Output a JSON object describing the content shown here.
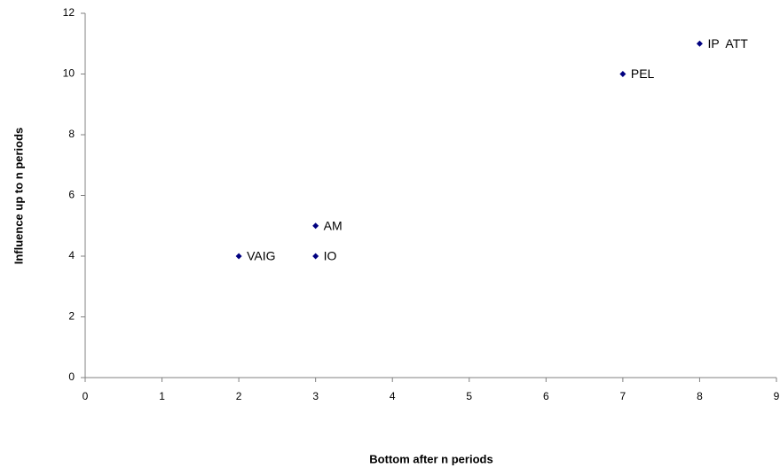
{
  "chart_data": {
    "type": "scatter",
    "x_label": "Bottom after n periods",
    "y_label": "Influence up to n periods",
    "x": [
      2,
      3,
      3,
      7,
      8
    ],
    "values": [
      4,
      5,
      4,
      10,
      11
    ],
    "point_labels": [
      "VAIG",
      "AM",
      "IO",
      "PEL",
      "IP  ATT"
    ],
    "color": "#000080",
    "xlim": [
      0,
      9
    ],
    "xticks": [
      0,
      1,
      2,
      3,
      4,
      5,
      6,
      7,
      8,
      9
    ],
    "ylim": [
      0,
      12
    ],
    "yticks": [
      0,
      2,
      4,
      6,
      8,
      10,
      12
    ],
    "grid": false
  }
}
